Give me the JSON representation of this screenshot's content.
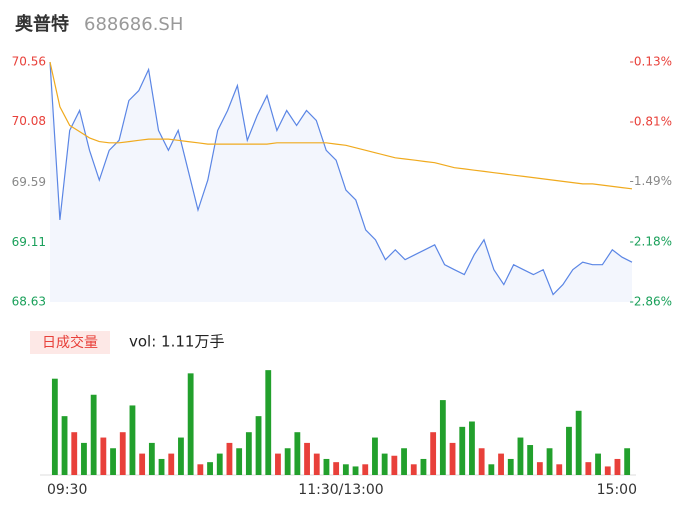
{
  "chart_data": [
    {
      "type": "line",
      "title": "奥普特",
      "subtitle": "688686.SH",
      "xlim": [
        0,
        59
      ],
      "xticks": [
        {
          "value": 0,
          "label": "09:30"
        },
        {
          "value": 29.5,
          "label": "11:30/13:00"
        },
        {
          "value": 59,
          "label": "15:00"
        }
      ],
      "ylim": [
        68.63,
        70.56
      ],
      "yticks": [
        70.56,
        70.08,
        69.59,
        69.11,
        68.63
      ],
      "y2lim": [
        -2.86,
        -0.13
      ],
      "y2ticks": [
        {
          "value": -0.13,
          "label": "-0.13%"
        },
        {
          "value": -0.81,
          "label": "-0.81%"
        },
        {
          "value": -1.49,
          "label": "-1.49%"
        },
        {
          "value": -2.18,
          "label": "-2.18%"
        },
        {
          "value": -2.86,
          "label": "-2.86%"
        }
      ],
      "tick_colors": [
        "#e8403a",
        "#e8403a",
        "#888888",
        "#1aa05a",
        "#1aa05a"
      ],
      "series": [
        {
          "color": "#5b86e5",
          "fill": "#f3f6fd",
          "values": [
            70.56,
            69.29,
            70.01,
            70.17,
            69.85,
            69.61,
            69.85,
            69.93,
            70.25,
            70.33,
            70.5,
            70.01,
            69.85,
            70.01,
            69.69,
            69.37,
            69.61,
            70.01,
            70.17,
            70.37,
            69.93,
            70.13,
            70.29,
            70.01,
            70.17,
            70.05,
            70.17,
            70.09,
            69.85,
            69.77,
            69.53,
            69.45,
            69.21,
            69.13,
            68.97,
            69.05,
            68.97,
            69.01,
            69.05,
            69.09,
            68.93,
            68.89,
            68.85,
            69.01,
            69.13,
            68.89,
            68.77,
            68.93,
            68.89,
            68.85,
            68.89,
            68.69,
            68.77,
            68.89,
            68.95,
            68.93,
            68.93,
            69.05,
            68.99,
            68.95
          ]
        },
        {
          "color": "#f0aa1e",
          "values": [
            70.56,
            70.2,
            70.05,
            70.0,
            69.95,
            69.92,
            69.91,
            69.91,
            69.92,
            69.93,
            69.94,
            69.94,
            69.94,
            69.93,
            69.92,
            69.91,
            69.9,
            69.9,
            69.9,
            69.9,
            69.9,
            69.9,
            69.9,
            69.91,
            69.91,
            69.91,
            69.91,
            69.91,
            69.91,
            69.9,
            69.89,
            69.87,
            69.85,
            69.83,
            69.81,
            69.79,
            69.78,
            69.77,
            69.76,
            69.75,
            69.73,
            69.71,
            69.7,
            69.69,
            69.68,
            69.67,
            69.66,
            69.65,
            69.64,
            69.63,
            69.62,
            69.61,
            69.6,
            69.59,
            69.58,
            69.58,
            69.57,
            69.56,
            69.55,
            69.54
          ]
        }
      ]
    },
    {
      "type": "bar",
      "title": "日成交量",
      "annotation": "vol: 1.11万手",
      "ylim": [
        0,
        100
      ],
      "values": [
        90,
        55,
        40,
        30,
        75,
        35,
        25,
        40,
        65,
        20,
        30,
        15,
        20,
        35,
        95,
        10,
        12,
        20,
        30,
        25,
        40,
        55,
        98,
        20,
        25,
        40,
        30,
        20,
        15,
        12,
        10,
        8,
        10,
        35,
        20,
        18,
        25,
        10,
        15,
        40,
        70,
        30,
        45,
        50,
        25,
        10,
        20,
        15,
        35,
        28,
        12,
        25,
        10,
        45,
        60,
        12,
        20,
        8,
        15,
        25
      ],
      "colors": [
        "#22a02c",
        "#22a02c",
        "#e8403a",
        "#22a02c",
        "#22a02c",
        "#e8403a",
        "#22a02c",
        "#e8403a",
        "#22a02c",
        "#e8403a",
        "#22a02c",
        "#22a02c",
        "#e8403a",
        "#22a02c",
        "#22a02c",
        "#e8403a",
        "#22a02c",
        "#22a02c",
        "#e8403a",
        "#22a02c",
        "#22a02c",
        "#22a02c",
        "#22a02c",
        "#e8403a",
        "#22a02c",
        "#22a02c",
        "#e8403a",
        "#e8403a",
        "#22a02c",
        "#e8403a",
        "#22a02c",
        "#22a02c",
        "#e8403a",
        "#22a02c",
        "#22a02c",
        "#e8403a",
        "#22a02c",
        "#e8403a",
        "#22a02c",
        "#e8403a",
        "#22a02c",
        "#e8403a",
        "#22a02c",
        "#22a02c",
        "#e8403a",
        "#22a02c",
        "#e8403a",
        "#22a02c",
        "#22a02c",
        "#22a02c",
        "#e8403a",
        "#22a02c",
        "#e8403a",
        "#22a02c",
        "#22a02c",
        "#e8403a",
        "#22a02c",
        "#e8403a",
        "#e8403a",
        "#22a02c"
      ]
    }
  ]
}
